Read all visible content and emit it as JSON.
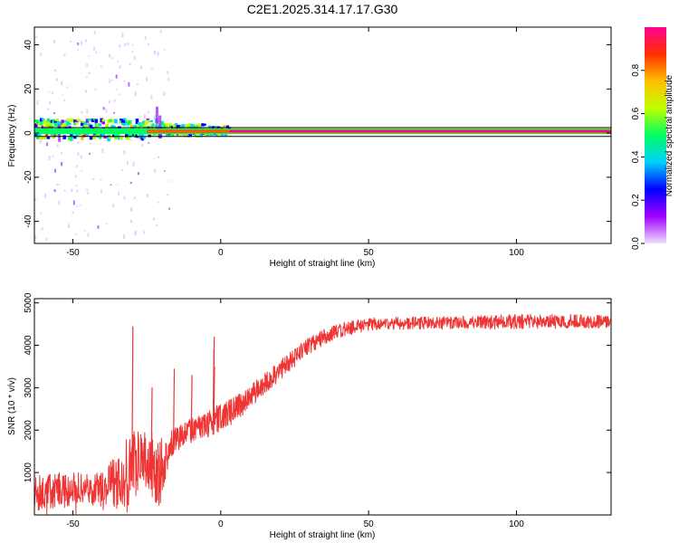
{
  "title": "C2E1.2025.314.17.17.G30",
  "chart_data": [
    {
      "type": "heatmap",
      "name": "spectrogram",
      "xlabel": "Height of straight line (km)",
      "ylabel": "Frequency (Hz)",
      "xlim": [
        -63,
        132
      ],
      "ylim": [
        -50,
        48
      ],
      "x_ticks": [
        -50,
        0,
        50,
        100
      ],
      "y_ticks": [
        40,
        20,
        0,
        -20,
        -40
      ],
      "colorbar": {
        "label": "Normalized spectral amplitude",
        "range": [
          0,
          1
        ],
        "ticks": [
          "0.0",
          "0.2",
          "0.4",
          "0.6",
          "0.8"
        ],
        "colormap": [
          "#f0e0ff",
          "#a000ff",
          "#0000ff",
          "#00d0ff",
          "#00ff60",
          "#c0ff00",
          "#ffc000",
          "#ff3000",
          "#ff0090"
        ]
      },
      "ridge": {
        "frequency_hz": 0.8,
        "x_start": -63,
        "x_end": 132,
        "amplitude": "peak (~1.0) beyond ~3 km"
      },
      "noisy_band": {
        "x_start": -63,
        "x_end": 3,
        "frequency_spread_hz": [
          -4,
          6
        ]
      },
      "bounding_lines_hz": [
        2.5,
        -1.5
      ]
    },
    {
      "type": "line",
      "name": "snr",
      "xlabel": "Height of straight line (km)",
      "ylabel": "SNR (10 * v/v)",
      "xlim": [
        -63,
        132
      ],
      "ylim": [
        0,
        5100
      ],
      "x_ticks": [
        -50,
        0,
        50,
        100
      ],
      "y_ticks": [
        1000,
        2000,
        3000,
        4000,
        5000
      ],
      "series": [
        {
          "name": "SNR",
          "color": "#ef3434",
          "envelope": {
            "x": [
              -63,
              -40,
              -32,
              -28,
              -20,
              -18,
              -15,
              -10,
              -5,
              0,
              5,
              10,
              15,
              20,
              25,
              30,
              35,
              40,
              50,
              60,
              80,
              100,
              120,
              132
            ],
            "mean": [
              550,
              650,
              900,
              1300,
              1000,
              1600,
              1800,
              2000,
              2100,
              2300,
              2500,
              2800,
              3100,
              3400,
              3700,
              4000,
              4200,
              4350,
              4500,
              4520,
              4530,
              4560,
              4570,
              4560
            ],
            "noise": [
              450,
              350,
              900,
              800,
              900,
              350,
              300,
              280,
              300,
              350,
              300,
              280,
              260,
              240,
              220,
              200,
              180,
              170,
              150,
              150,
              150,
              180,
              160,
              150
            ]
          },
          "spikes": [
            {
              "x": -30,
              "y": 4450
            },
            {
              "x": -23.5,
              "y": 3000
            },
            {
              "x": -16,
              "y": 3450
            },
            {
              "x": -10,
              "y": 3300
            },
            {
              "x": -2.5,
              "y": 4200
            },
            {
              "x": -2.6,
              "y": 3900
            },
            {
              "x": -2.4,
              "y": 3500
            }
          ]
        }
      ]
    }
  ]
}
